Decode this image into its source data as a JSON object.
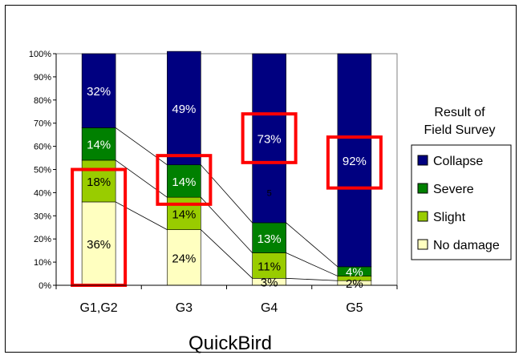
{
  "chart_data": {
    "type": "bar",
    "stacked": true,
    "percent": true,
    "title": "",
    "xlabel": "QuickBird",
    "ylabel": "",
    "ylim": [
      0,
      100
    ],
    "yticks": [
      "0%",
      "10%",
      "20%",
      "30%",
      "40%",
      "50%",
      "60%",
      "70%",
      "80%",
      "90%",
      "100%"
    ],
    "categories": [
      "G1,G2",
      "G3",
      "G4",
      "G5"
    ],
    "series": [
      {
        "name": "No damage",
        "color": "#ffffc0",
        "values": [
          36,
          24,
          3,
          2
        ],
        "labels": [
          "36%",
          "24%",
          "3%",
          "2%"
        ]
      },
      {
        "name": "Slight",
        "color": "#99cc00",
        "values": [
          18,
          14,
          11,
          2
        ],
        "labels": [
          "18%",
          "14%",
          "11%",
          ""
        ]
      },
      {
        "name": "Severe",
        "color": "#008000",
        "values": [
          14,
          14,
          13,
          4
        ],
        "labels": [
          "14%",
          "14%",
          "13%",
          "4%"
        ]
      },
      {
        "name": "Collapse",
        "color": "#000080",
        "values": [
          32,
          49,
          73,
          92
        ],
        "labels": [
          "32%",
          "49%",
          "73%",
          "92%"
        ]
      }
    ],
    "legend": {
      "title_line1": "Result of",
      "title_line2": "Field Survey",
      "placement": "right",
      "order": [
        "Collapse",
        "Severe",
        "Slight",
        "No damage"
      ]
    },
    "stray_label": "5",
    "highlight_color": "#ff0000",
    "highlights": [
      {
        "category": "G1,G2",
        "from": 0,
        "to": 50
      },
      {
        "category": "G3",
        "from": 35,
        "to": 56
      },
      {
        "category": "G4",
        "from": 53,
        "to": 74
      },
      {
        "category": "G5",
        "from": 42,
        "to": 64
      }
    ],
    "grid": false,
    "connector_lines": true
  }
}
